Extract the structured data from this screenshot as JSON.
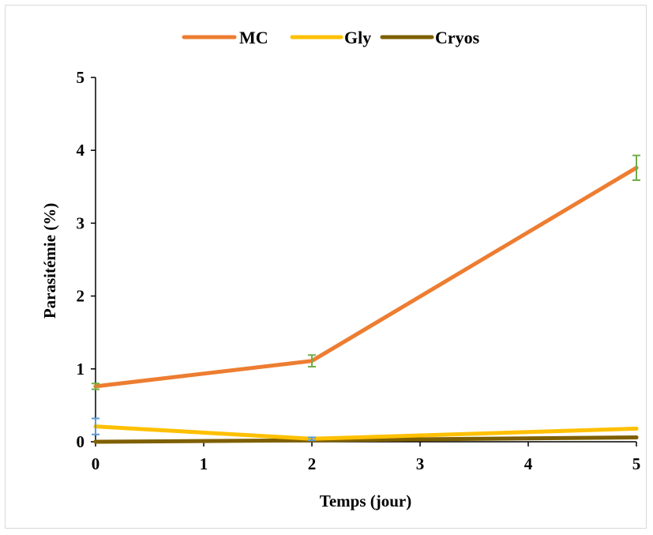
{
  "chart_data": {
    "type": "line",
    "title": "",
    "xlabel": "Temps (jour)",
    "ylabel": "Parasitémie (%)",
    "xlim": [
      0,
      5
    ],
    "ylim": [
      0,
      5
    ],
    "x_ticks": [
      "0",
      "1",
      "2",
      "3",
      "4",
      "5"
    ],
    "y_ticks": [
      "0",
      "1",
      "2",
      "3",
      "4",
      "5"
    ],
    "grid": false,
    "legend_position": "top",
    "x": [
      0,
      2,
      5
    ],
    "series": [
      {
        "name": "MC",
        "values": [
          0.76,
          1.11,
          3.76
        ],
        "errors": [
          0.04,
          0.08,
          0.17
        ],
        "color": "#ED7D31",
        "error_color": "#70AD47"
      },
      {
        "name": "Gly",
        "values": [
          0.21,
          0.04,
          0.18
        ],
        "errors": [
          0.11,
          0.02,
          0.0
        ],
        "color": "#FFC000",
        "error_color": "#5B9BD5"
      },
      {
        "name": "Cryos",
        "values": [
          0.0,
          0.02,
          0.06
        ],
        "errors": [
          0.0,
          0.0,
          0.0
        ],
        "color": "#7F6000",
        "error_color": "#7F6000"
      }
    ]
  }
}
